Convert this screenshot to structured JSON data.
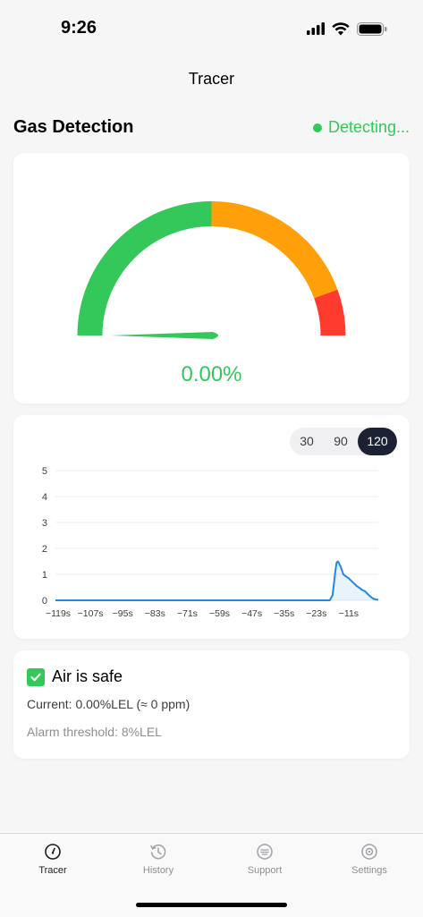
{
  "status_bar": {
    "time": "9:26",
    "icons": [
      "signal-icon",
      "wifi-icon",
      "battery-icon"
    ]
  },
  "nav": {
    "title": "Tracer"
  },
  "section": {
    "title": "Gas Detection",
    "status": "Detecting...",
    "status_color": "#34c759"
  },
  "gauge": {
    "value_text": "0.00%",
    "value": 0,
    "colors": {
      "safe": "#34c759",
      "warning": "#ff9f0a",
      "danger": "#ff3b30"
    }
  },
  "chart": {
    "ranges": [
      "30",
      "90",
      "120"
    ],
    "selected_range": "120"
  },
  "chart_data": {
    "type": "area",
    "x_tick_labels": [
      "−119s",
      "−107s",
      "−95s",
      "−83s",
      "−71s",
      "−59s",
      "−47s",
      "−35s",
      "−23s",
      "−11s"
    ],
    "y_tick_labels": [
      "0",
      "1",
      "2",
      "3",
      "4",
      "5"
    ],
    "ylim": [
      0,
      5
    ],
    "xlim": [
      -120,
      0
    ],
    "grid": true,
    "line_color": "#1e88e5",
    "x": [
      -120,
      -100,
      -80,
      -60,
      -40,
      -20,
      -18,
      -17,
      -16,
      -15.5,
      -15,
      -14,
      -13,
      -12,
      -11,
      -10,
      -9,
      -8,
      -7,
      -6,
      -5,
      -4,
      -3,
      -2,
      -1,
      0
    ],
    "y": [
      0,
      0,
      0,
      0,
      0,
      0,
      0,
      0.2,
      1.1,
      1.45,
      1.5,
      1.3,
      1.0,
      0.92,
      0.85,
      0.75,
      0.65,
      0.55,
      0.48,
      0.4,
      0.35,
      0.25,
      0.15,
      0.07,
      0.03,
      0.02
    ]
  },
  "info": {
    "safe_label": "Air is safe",
    "current": "Current: 0.00%LEL (≈ 0 ppm)",
    "threshold": "Alarm threshold: 8%LEL"
  },
  "tabs": [
    {
      "label": "Tracer",
      "icon": "gauge-icon",
      "active": true
    },
    {
      "label": "History",
      "icon": "history-icon",
      "active": false
    },
    {
      "label": "Support",
      "icon": "chat-icon",
      "active": false
    },
    {
      "label": "Settings",
      "icon": "settings-icon",
      "active": false
    }
  ]
}
